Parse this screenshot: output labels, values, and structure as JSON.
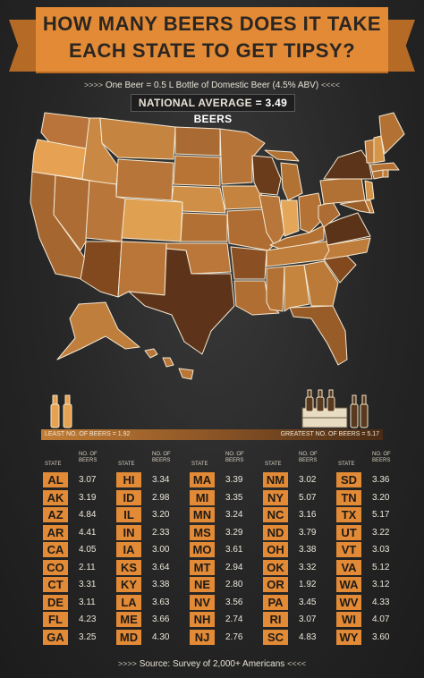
{
  "title_line1": "HOW MANY BEERS DOES IT TAKE",
  "title_line2": "EACH STATE TO GET TIPSY?",
  "subtitle": "One Beer = 0.5 L Bottle of Domestic Beer (4.5% ABV)",
  "national_avg_label": "NATIONAL AVERAGE",
  "national_avg_value": "= 3.49 BEERS",
  "legend": {
    "least": "LEAST NO. OF BEERS = 1.92",
    "greatest": "GREATEST NO. OF BEERS = 5.17",
    "low_color": "#c27d35",
    "high_color": "#4a2b15"
  },
  "table_headers": {
    "state": "STATE",
    "beers": "NO. OF BEERS"
  },
  "columns": [
    [
      {
        "s": "AL",
        "v": "3.07"
      },
      {
        "s": "AK",
        "v": "3.19"
      },
      {
        "s": "AZ",
        "v": "4.84"
      },
      {
        "s": "AR",
        "v": "4.41"
      },
      {
        "s": "CA",
        "v": "4.05"
      },
      {
        "s": "CO",
        "v": "2.11"
      },
      {
        "s": "CT",
        "v": "3.31"
      },
      {
        "s": "DE",
        "v": "3.11"
      },
      {
        "s": "FL",
        "v": "4.23"
      },
      {
        "s": "GA",
        "v": "3.25"
      }
    ],
    [
      {
        "s": "HI",
        "v": "3.34"
      },
      {
        "s": "ID",
        "v": "2.98"
      },
      {
        "s": "IL",
        "v": "3.20"
      },
      {
        "s": "IN",
        "v": "2.33"
      },
      {
        "s": "IA",
        "v": "3.00"
      },
      {
        "s": "KS",
        "v": "3.64"
      },
      {
        "s": "KY",
        "v": "3.38"
      },
      {
        "s": "LA",
        "v": "3.63"
      },
      {
        "s": "ME",
        "v": "3.66"
      },
      {
        "s": "MD",
        "v": "4.30"
      }
    ],
    [
      {
        "s": "MA",
        "v": "3.39"
      },
      {
        "s": "MI",
        "v": "3.35"
      },
      {
        "s": "MN",
        "v": "3.24"
      },
      {
        "s": "MS",
        "v": "3.29"
      },
      {
        "s": "MO",
        "v": "3.61"
      },
      {
        "s": "MT",
        "v": "2.94"
      },
      {
        "s": "NE",
        "v": "2.80"
      },
      {
        "s": "NV",
        "v": "3.56"
      },
      {
        "s": "NH",
        "v": "2.74"
      },
      {
        "s": "NJ",
        "v": "2.76"
      }
    ],
    [
      {
        "s": "NM",
        "v": "3.02"
      },
      {
        "s": "NY",
        "v": "5.07"
      },
      {
        "s": "NC",
        "v": "3.16"
      },
      {
        "s": "ND",
        "v": "3.79"
      },
      {
        "s": "OH",
        "v": "3.38"
      },
      {
        "s": "OK",
        "v": "3.32"
      },
      {
        "s": "OR",
        "v": "1.92"
      },
      {
        "s": "PA",
        "v": "3.45"
      },
      {
        "s": "RI",
        "v": "3.07"
      },
      {
        "s": "SC",
        "v": "4.83"
      }
    ],
    [
      {
        "s": "SD",
        "v": "3.36"
      },
      {
        "s": "TN",
        "v": "3.20"
      },
      {
        "s": "TX",
        "v": "5.17"
      },
      {
        "s": "UT",
        "v": "3.22"
      },
      {
        "s": "VT",
        "v": "3.03"
      },
      {
        "s": "VA",
        "v": "5.12"
      },
      {
        "s": "WA",
        "v": "3.12"
      },
      {
        "s": "WV",
        "v": "4.33"
      },
      {
        "s": "WI",
        "v": "4.07"
      },
      {
        "s": "WY",
        "v": "3.60"
      }
    ]
  ],
  "source": "Source: Survey of 2,000+ Americans",
  "accent_color": "#e28a36"
}
